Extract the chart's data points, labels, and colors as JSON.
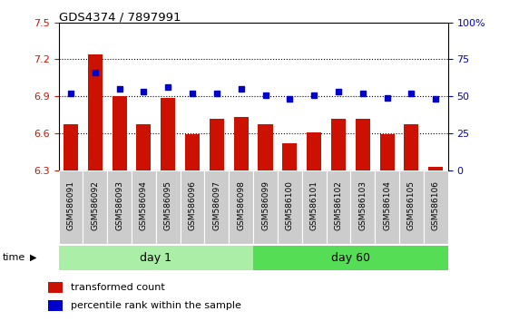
{
  "title": "GDS4374 / 7897991",
  "samples": [
    "GSM586091",
    "GSM586092",
    "GSM586093",
    "GSM586094",
    "GSM586095",
    "GSM586096",
    "GSM586097",
    "GSM586098",
    "GSM586099",
    "GSM586100",
    "GSM586101",
    "GSM586102",
    "GSM586103",
    "GSM586104",
    "GSM586105",
    "GSM586106"
  ],
  "transformed_count": [
    6.67,
    7.24,
    6.9,
    6.67,
    6.89,
    6.59,
    6.72,
    6.73,
    6.67,
    6.52,
    6.61,
    6.72,
    6.72,
    6.59,
    6.67,
    6.33
  ],
  "percentile_rank": [
    52,
    66,
    55,
    53,
    56,
    52,
    52,
    55,
    51,
    48,
    51,
    53,
    52,
    49,
    52,
    48
  ],
  "day1_samples": 8,
  "day60_samples": 8,
  "bar_color": "#cc1100",
  "dot_color": "#0000cc",
  "day1_color": "#aaeea8",
  "day60_color": "#55dd55",
  "ylim_left": [
    6.3,
    7.5
  ],
  "ylim_right": [
    0,
    100
  ],
  "yticks_left": [
    6.3,
    6.6,
    6.9,
    7.2,
    7.5
  ],
  "yticks_left_labels": [
    "6.3",
    "6.6",
    "6.9",
    "7.2",
    "7.5"
  ],
  "yticks_right": [
    0,
    25,
    50,
    75,
    100
  ],
  "yticks_right_labels": [
    "0",
    "25",
    "50",
    "75",
    "100%"
  ],
  "hlines": [
    6.6,
    6.9,
    7.2
  ],
  "xlabel": "time",
  "legend_red_label": "transformed count",
  "legend_blue_label": "percentile rank within the sample",
  "bar_width": 0.6,
  "background_color": "#ffffff",
  "plot_bg_color": "#ffffff",
  "tick_label_bg": "#cccccc"
}
